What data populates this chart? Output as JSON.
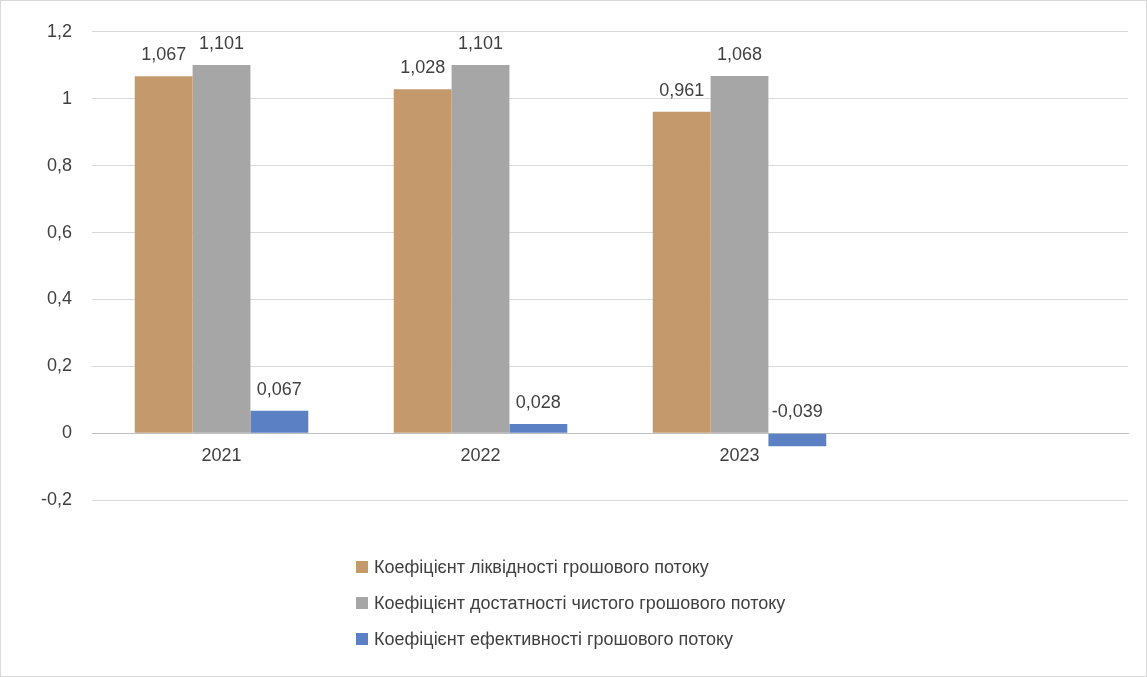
{
  "chart_data": {
    "type": "bar",
    "categories": [
      "2021",
      "2022",
      "2023",
      null
    ],
    "series": [
      {
        "name": "Коефіцієнт ліквідності грошового потоку",
        "color": "#c49a6c",
        "values": [
          1.067,
          1.028,
          0.961,
          null
        ],
        "value_labels": [
          "1,067",
          "1,028",
          "0,961",
          null
        ]
      },
      {
        "name": "Коефіцієнт достатності чистого грошового потоку",
        "color": "#a6a6a6",
        "values": [
          1.101,
          1.101,
          1.068,
          null
        ],
        "value_labels": [
          "1,101",
          "1,101",
          "1,068",
          null
        ]
      },
      {
        "name": "Коефіцієнт ефективності грошового потоку",
        "color": "#5b80c4",
        "values": [
          0.067,
          0.028,
          -0.039,
          null
        ],
        "value_labels": [
          "0,067",
          "0,028",
          "-0,039",
          null
        ]
      }
    ],
    "ylim": [
      -0.2,
      1.2
    ],
    "yticks": [
      {
        "value": -0.2,
        "label": "-0,2"
      },
      0,
      {
        "value": 0.2,
        "label": "0,2"
      },
      {
        "value": 0.4,
        "label": "0,4"
      },
      {
        "value": 0.6,
        "label": "0,6"
      },
      {
        "value": 0.8,
        "label": "0,8"
      },
      1,
      {
        "value": 1.2,
        "label": "1,2"
      }
    ],
    "grid": "y",
    "legend": "bottom"
  }
}
